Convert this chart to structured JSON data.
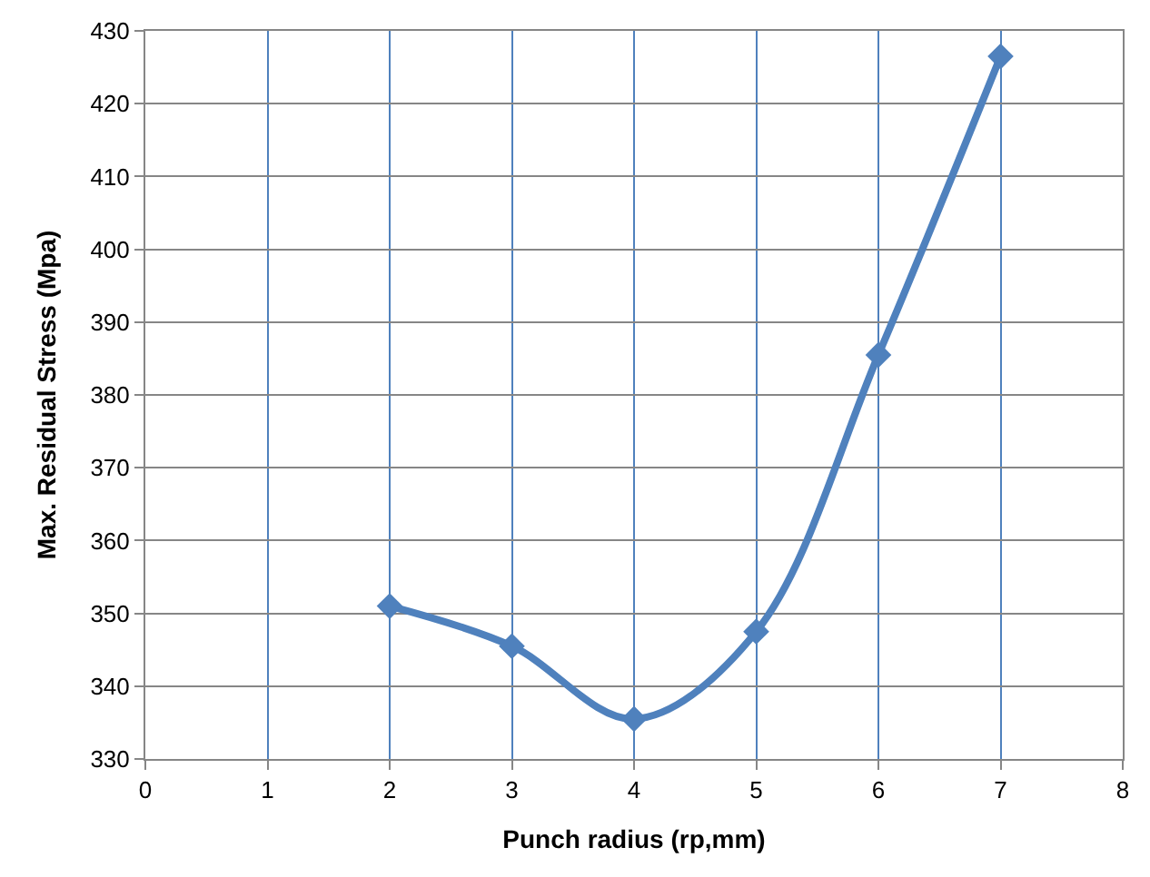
{
  "chart_data": {
    "type": "line",
    "xlabel": "Punch radius (rp,mm)",
    "ylabel": "Max. Residual Stress (Mpa)",
    "x": [
      2,
      3,
      4,
      5,
      6,
      7
    ],
    "series": [
      {
        "color": "#4f81bd",
        "values": [
          351,
          345.5,
          335.5,
          347.5,
          385.5,
          426.5
        ]
      }
    ],
    "xlim": [
      0,
      8
    ],
    "xticks": [
      0,
      1,
      2,
      3,
      4,
      5,
      6,
      7,
      8
    ],
    "ylim": [
      330,
      430
    ],
    "yticks": [
      330,
      340,
      350,
      360,
      370,
      380,
      390,
      400,
      410,
      420,
      430
    ],
    "grid": true,
    "marker": "diamond",
    "line_style": "solid"
  }
}
